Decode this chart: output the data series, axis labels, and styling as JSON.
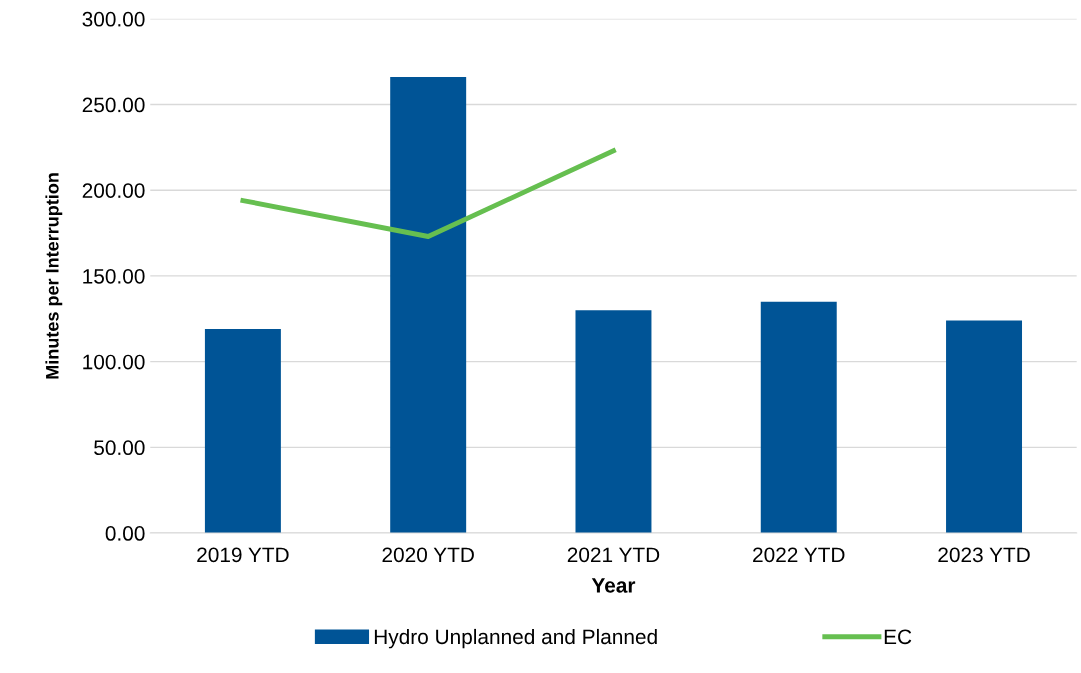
{
  "chart_data": {
    "type": "bar",
    "xlabel": "Year",
    "ylabel": "Minutes per Interruption",
    "categories": [
      "2019 YTD",
      "2020 YTD",
      "2021 YTD",
      "2022 YTD",
      "2023 YTD"
    ],
    "series": [
      {
        "name": "Hydro Unplanned and Planned",
        "color": "#005496",
        "values": [
          119,
          266,
          130,
          135,
          124
        ]
      },
      {
        "name": "EC",
        "type": "line",
        "color": "#66bf50",
        "values": [
          194,
          173,
          223,
          null,
          null
        ]
      }
    ],
    "ylim": [
      0,
      300
    ],
    "yticks": [
      {
        "value": 0,
        "label": "0.00"
      },
      {
        "value": 50,
        "label": "50.00"
      },
      {
        "value": 100,
        "label": "100.00"
      },
      {
        "value": 150,
        "label": "150.00"
      },
      {
        "value": 200,
        "label": "200.00"
      },
      {
        "value": 250,
        "label": "250.00"
      },
      {
        "value": 300,
        "label": "300.00"
      }
    ],
    "grid": "y",
    "legend": "bottom",
    "marker": "none",
    "line_style": "solid"
  }
}
